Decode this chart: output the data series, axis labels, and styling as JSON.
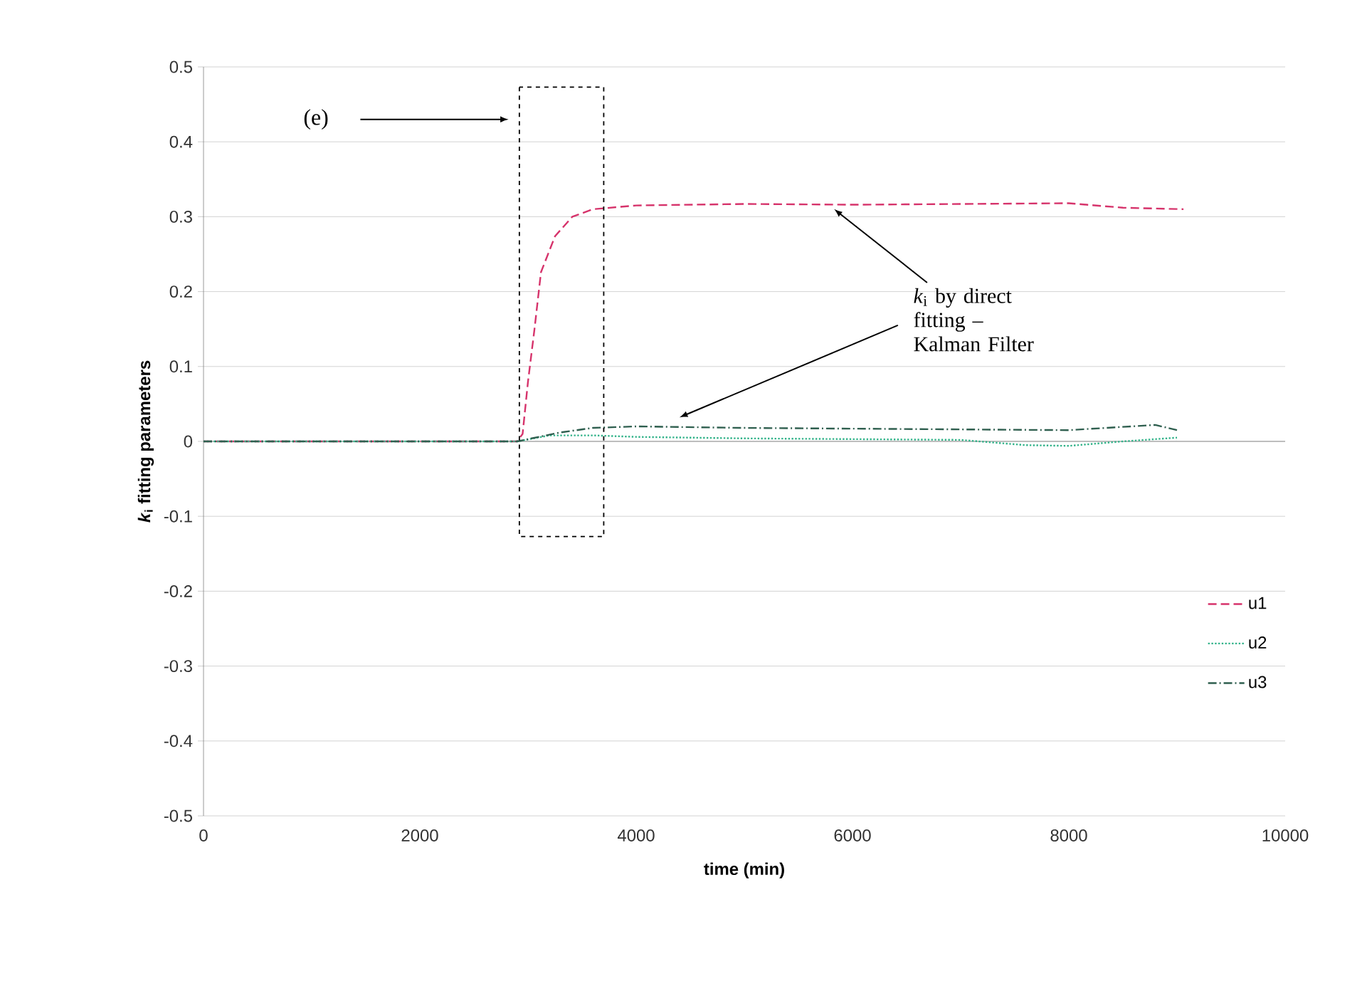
{
  "chart_data": {
    "type": "line",
    "xlabel": "time (min)",
    "ylabel": "*k*$_{i}$ fitting parameters",
    "xlim": [
      0,
      10000
    ],
    "xticks": [
      0,
      2000,
      4000,
      6000,
      8000,
      10000
    ],
    "ylim": [
      -0.5,
      0.5
    ],
    "yticks": [
      -0.5,
      -0.4,
      -0.3,
      -0.2,
      -0.1,
      0,
      0.1,
      0.2,
      0.3,
      0.4,
      0.5
    ],
    "grid": "y",
    "legend": "bottom right",
    "marker": "none",
    "annotations": [
      "(e)",
      "*k*$_{i}$ by direct fitting – Kalman Filter"
    ],
    "series": [
      {
        "name": "u1",
        "color": "#d6336b",
        "line_style": "dashed",
        "x": [
          0,
          1000,
          2000,
          2900,
          2950,
          3000,
          3060,
          3120,
          3250,
          3410,
          3600,
          4000,
          5000,
          6000,
          7000,
          8000,
          8500,
          9060
        ],
        "values": [
          0,
          0,
          0,
          0,
          0.01,
          0.08,
          0.15,
          0.226,
          0.274,
          0.3,
          0.31,
          0.315,
          0.317,
          0.316,
          0.317,
          0.318,
          0.312,
          0.31
        ]
      },
      {
        "name": "u2",
        "color": "#33b38a",
        "line_style": "dotted",
        "x": [
          0,
          1000,
          2000,
          2900,
          3200,
          3600,
          4000,
          5000,
          6000,
          7000,
          7600,
          8000,
          8500,
          9000
        ],
        "values": [
          0,
          0,
          0,
          0,
          0.008,
          0.008,
          0.006,
          0.004,
          0.003,
          0.002,
          -0.005,
          -0.006,
          0,
          0.005
        ]
      },
      {
        "name": "u3",
        "color": "#2f5f4f",
        "line_style": "dashdot",
        "x": [
          0,
          1000,
          2000,
          2900,
          3300,
          3600,
          4000,
          5000,
          6000,
          7000,
          8000,
          8800,
          9000
        ],
        "values": [
          0,
          0,
          0,
          0,
          0.012,
          0.018,
          0.02,
          0.018,
          0.017,
          0.016,
          0.015,
          0.022,
          0.015
        ]
      }
    ]
  }
}
